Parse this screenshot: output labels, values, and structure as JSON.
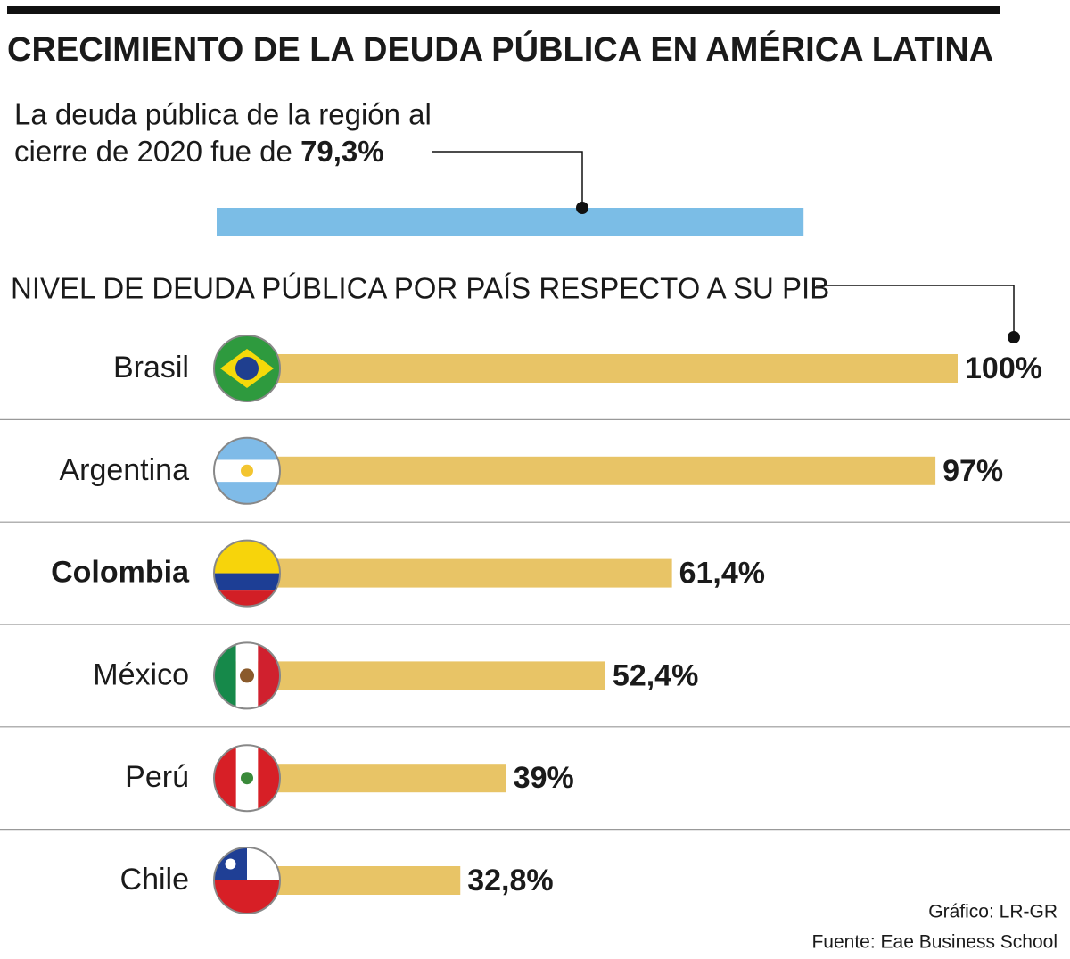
{
  "title": "CRECIMIENTO DE LA DEUDA PÚBLICA EN AMÉRICA LATINA",
  "intro_lines": [
    "La deuda pública de la región al",
    "cierre de 2020 fue de"
  ],
  "regional": {
    "value": 79.3,
    "value_label": "79,3%",
    "color": "#7bbde6"
  },
  "chart_data": {
    "type": "bar",
    "orientation": "horizontal",
    "subtitle": "NIVEL DE DEUDA PÚBLICA POR PAÍS RESPECTO A SU PIB",
    "categories": [
      "Brasil",
      "Argentina",
      "Colombia",
      "México",
      "Perú",
      "Chile"
    ],
    "values": [
      100,
      97,
      61.4,
      52.4,
      39,
      32.8
    ],
    "value_labels": [
      "100%",
      "97%",
      "61,4%",
      "52,4%",
      "39%",
      "32,8%"
    ],
    "color": "#e8c466",
    "xlim": [
      0,
      100
    ]
  },
  "credits": [
    "Gráfico: LR-GR",
    "Fuente: Eae Business School"
  ]
}
